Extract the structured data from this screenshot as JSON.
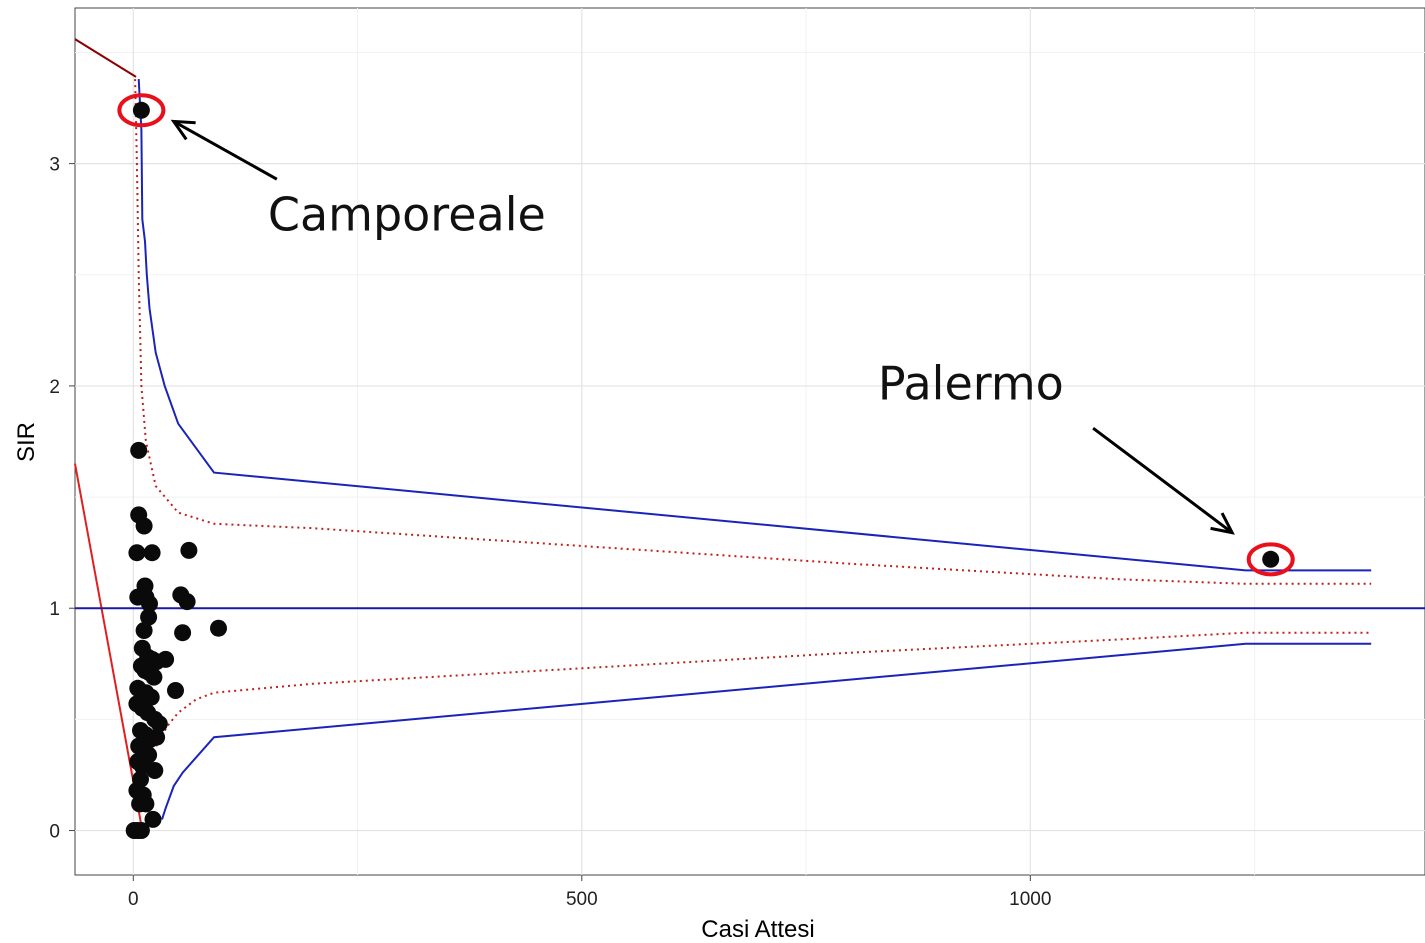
{
  "chart_data": {
    "type": "scatter",
    "xlabel": "Casi Attesi",
    "ylabel": "SIR",
    "xlim": [
      -65,
      1440
    ],
    "ylim": [
      -0.2,
      3.7
    ],
    "x_ticks": [
      0,
      500,
      1000
    ],
    "y_ticks": [
      0,
      1,
      2,
      3
    ],
    "grid": true,
    "points": [
      [
        1268,
        1.22
      ],
      [
        9,
        3.24
      ],
      [
        6,
        1.71
      ],
      [
        6,
        1.42
      ],
      [
        12,
        1.37
      ],
      [
        4,
        1.25
      ],
      [
        21,
        1.25
      ],
      [
        62,
        1.26
      ],
      [
        13,
        1.1
      ],
      [
        5,
        1.05
      ],
      [
        14,
        1.05
      ],
      [
        18,
        1.02
      ],
      [
        53,
        1.06
      ],
      [
        60,
        1.03
      ],
      [
        17,
        0.96
      ],
      [
        12,
        0.9
      ],
      [
        55,
        0.89
      ],
      [
        95,
        0.91
      ],
      [
        10,
        0.82
      ],
      [
        16,
        0.78
      ],
      [
        21,
        0.77
      ],
      [
        26,
        0.76
      ],
      [
        36,
        0.77
      ],
      [
        9,
        0.74
      ],
      [
        13,
        0.72
      ],
      [
        18,
        0.71
      ],
      [
        23,
        0.69
      ],
      [
        5,
        0.64
      ],
      [
        14,
        0.62
      ],
      [
        20,
        0.6
      ],
      [
        47,
        0.63
      ],
      [
        4,
        0.57
      ],
      [
        10,
        0.55
      ],
      [
        16,
        0.53
      ],
      [
        24,
        0.5
      ],
      [
        29,
        0.48
      ],
      [
        8,
        0.45
      ],
      [
        14,
        0.43
      ],
      [
        19,
        0.41
      ],
      [
        26,
        0.42
      ],
      [
        6,
        0.38
      ],
      [
        12,
        0.36
      ],
      [
        17,
        0.34
      ],
      [
        5,
        0.31
      ],
      [
        10,
        0.29
      ],
      [
        24,
        0.27
      ],
      [
        8,
        0.23
      ],
      [
        4,
        0.18
      ],
      [
        11,
        0.16
      ],
      [
        7,
        0.12
      ],
      [
        14,
        0.12
      ],
      [
        22,
        0.05
      ],
      [
        1,
        0
      ],
      [
        5,
        0
      ],
      [
        9,
        0
      ]
    ],
    "reference_line": 1,
    "limits_outer": {
      "color": "#1a24b8",
      "upper": [
        [
          6,
          3.38
        ],
        [
          9,
          3.15
        ],
        [
          10,
          2.75
        ],
        [
          13,
          2.65
        ],
        [
          15,
          2.5
        ],
        [
          18,
          2.35
        ],
        [
          25,
          2.15
        ],
        [
          35,
          2.0
        ],
        [
          50,
          1.83
        ],
        [
          90,
          1.61
        ],
        [
          1240,
          1.17
        ],
        [
          1380,
          1.17
        ]
      ],
      "lower": [
        [
          32,
          0.05
        ],
        [
          36,
          0.1
        ],
        [
          45,
          0.2
        ],
        [
          55,
          0.26
        ],
        [
          90,
          0.42
        ],
        [
          1240,
          0.84
        ],
        [
          1380,
          0.84
        ]
      ]
    },
    "limits_inner": {
      "color": "#c0201a",
      "upper": [
        [
          2,
          3.38
        ],
        [
          4,
          3.0
        ],
        [
          6,
          2.5
        ],
        [
          9,
          2.0
        ],
        [
          14,
          1.75
        ],
        [
          25,
          1.55
        ],
        [
          50,
          1.43
        ],
        [
          90,
          1.38
        ],
        [
          200,
          1.36
        ],
        [
          500,
          1.28
        ],
        [
          800,
          1.2
        ],
        [
          1100,
          1.13
        ],
        [
          1240,
          1.11
        ],
        [
          1380,
          1.11
        ]
      ],
      "lower": [
        [
          20,
          0.33
        ],
        [
          28,
          0.4
        ],
        [
          38,
          0.47
        ],
        [
          50,
          0.53
        ],
        [
          70,
          0.59
        ],
        [
          90,
          0.62
        ],
        [
          200,
          0.66
        ],
        [
          500,
          0.73
        ],
        [
          800,
          0.8
        ],
        [
          1100,
          0.86
        ],
        [
          1240,
          0.89
        ],
        [
          1380,
          0.89
        ]
      ]
    },
    "extra_lines": [
      {
        "color": "#8b0000",
        "points": [
          [
            -65,
            3.56
          ],
          [
            3,
            3.39
          ]
        ]
      },
      {
        "color": "#e02020",
        "points": [
          [
            -65,
            1.65
          ],
          [
            10,
            0.0
          ]
        ]
      }
    ],
    "annotations": [
      {
        "text": "Camporeale",
        "label_x": 150,
        "label_y": 2.7,
        "arrow_from": [
          160,
          2.93
        ],
        "arrow_to": [
          45,
          3.19
        ],
        "circle": [
          9,
          3.24
        ]
      },
      {
        "text": "Palermo",
        "label_x": 830,
        "label_y": 1.94,
        "arrow_from": [
          1070,
          1.81
        ],
        "arrow_to": [
          1225,
          1.34
        ],
        "circle": [
          1268,
          1.22
        ]
      }
    ]
  }
}
